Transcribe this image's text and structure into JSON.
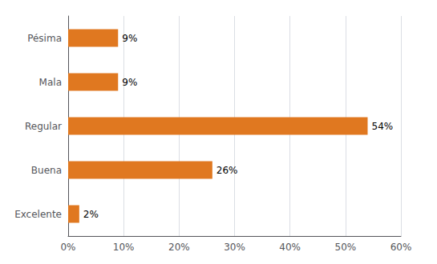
{
  "chart_data": {
    "type": "bar",
    "orientation": "horizontal",
    "categories": [
      "Pésima",
      "Mala",
      "Regular",
      "Buena",
      "Excelente"
    ],
    "values": [
      9,
      9,
      54,
      26,
      2
    ],
    "value_labels": [
      "9%",
      "9%",
      "54%",
      "26%",
      "2%"
    ],
    "data_labels": true,
    "color": "#E07820",
    "xlim": [
      0,
      60
    ],
    "xticks": [
      {
        "value": 0,
        "label": "0%"
      },
      {
        "value": 10,
        "label": "10%"
      },
      {
        "value": 20,
        "label": "20%"
      },
      {
        "value": 30,
        "label": "30%"
      },
      {
        "value": 40,
        "label": "40%"
      },
      {
        "value": 50,
        "label": "50%"
      },
      {
        "value": 60,
        "label": "60%"
      }
    ],
    "grid": true
  }
}
